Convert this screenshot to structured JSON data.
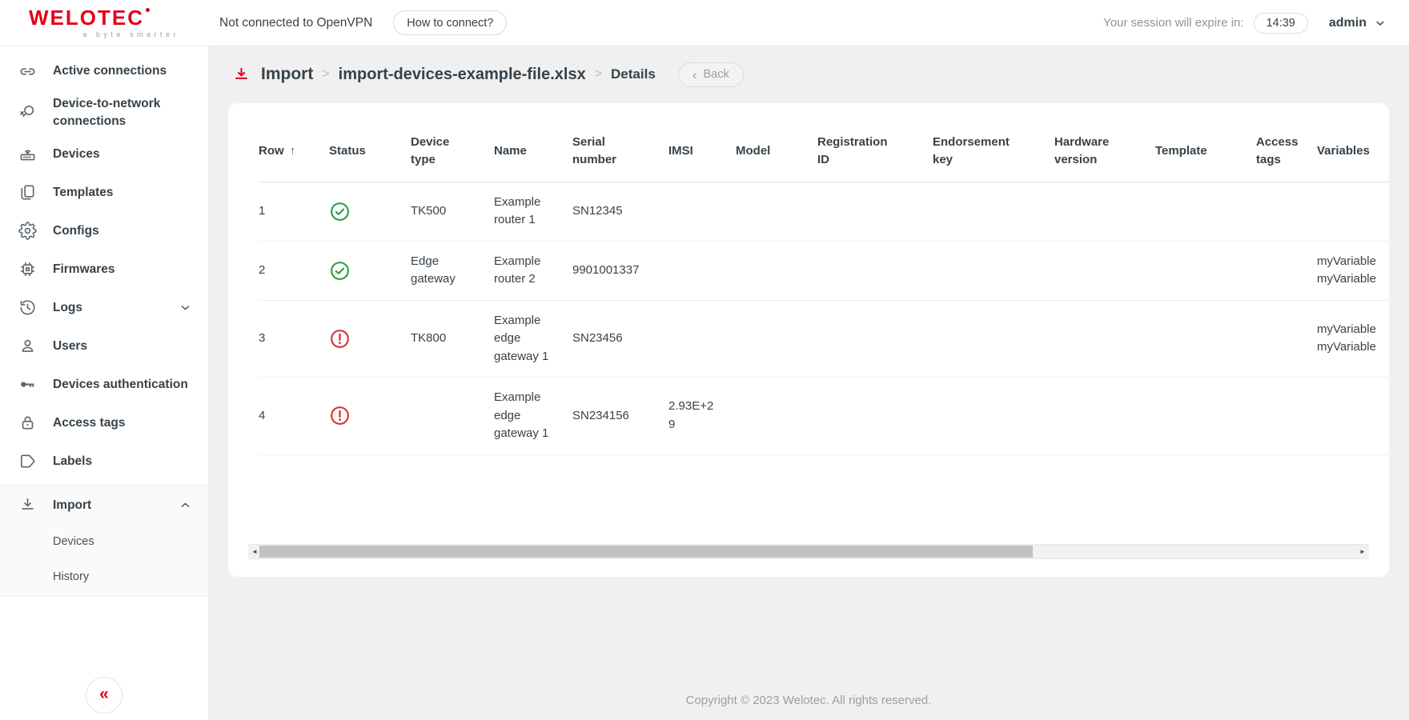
{
  "colors": {
    "brand_red": "#e2001a",
    "status_success_green": "#2f9e44",
    "status_error_red": "#d53434",
    "page_background": "#f0f0f0",
    "text_dark": "#37424a",
    "text_gray": "#8d9499"
  },
  "topbar": {
    "logo_brand": "welotec",
    "logo_tagline": "a byte smarter",
    "vpn_status": "Not connected to OpenVPN",
    "how_to_connect_label": "How to connect?",
    "session_label": "Your session will expire in:",
    "session_time": "14:39",
    "username": "admin"
  },
  "sidebar": {
    "items": [
      {
        "label": "Active connections",
        "icon": "link-icon"
      },
      {
        "label": "Device-to-network connections",
        "icon": "search-remove-icon"
      },
      {
        "label": "Devices",
        "icon": "router-icon"
      },
      {
        "label": "Templates",
        "icon": "templates-icon"
      },
      {
        "label": "Configs",
        "icon": "gear-icon"
      },
      {
        "label": "Firmwares",
        "icon": "chip-icon"
      },
      {
        "label": "Logs",
        "icon": "history-icon",
        "chevron": "down"
      },
      {
        "label": "Users",
        "icon": "user-icon"
      },
      {
        "label": "Devices authentication",
        "icon": "key-icon"
      },
      {
        "label": "Access tags",
        "icon": "lock-icon"
      },
      {
        "label": "Labels",
        "icon": "tag-icon"
      },
      {
        "label": "Import",
        "icon": "import-icon",
        "chevron": "up",
        "active": true,
        "children": [
          {
            "label": "Devices"
          },
          {
            "label": "History"
          }
        ]
      }
    ]
  },
  "breadcrumb": {
    "root": "Import",
    "separator": ">",
    "file": "import-devices-example-file.xlsx",
    "page": "Details",
    "back_label": "Back"
  },
  "table": {
    "columns": [
      {
        "label": "Row",
        "sorted": "asc"
      },
      {
        "label": "Status"
      },
      {
        "label": "Device type"
      },
      {
        "label": "Name"
      },
      {
        "label": "Serial number"
      },
      {
        "label": "IMSI"
      },
      {
        "label": "Model"
      },
      {
        "label": "Registration ID"
      },
      {
        "label": "Endorsement key"
      },
      {
        "label": "Hardware version"
      },
      {
        "label": "Template"
      },
      {
        "label": "Access tags"
      },
      {
        "label": "Variables"
      }
    ],
    "rows": [
      {
        "row": "1",
        "status": "success",
        "device_type": "TK500",
        "name": "Example router 1",
        "serial_number": "SN12345",
        "imsi": "",
        "model": "",
        "registration_id": "",
        "endorsement_key": "",
        "hardware_version": "",
        "template": "",
        "access_tags": "",
        "variables": []
      },
      {
        "row": "2",
        "status": "success",
        "device_type": "Edge gateway",
        "name": "Example router 2",
        "serial_number": "9901001337",
        "imsi": "",
        "model": "",
        "registration_id": "",
        "endorsement_key": "",
        "hardware_version": "",
        "template": "",
        "access_tags": "",
        "variables": [
          "myVariable",
          "myVariable"
        ]
      },
      {
        "row": "3",
        "status": "error",
        "device_type": "TK800",
        "name": "Example edge gateway 1",
        "serial_number": "SN23456",
        "imsi": "",
        "model": "",
        "registration_id": "",
        "endorsement_key": "",
        "hardware_version": "",
        "template": "",
        "access_tags": "",
        "variables": [
          "myVariable",
          "myVariable"
        ]
      },
      {
        "row": "4",
        "status": "error",
        "device_type": "",
        "name": "Example edge gateway 1",
        "serial_number": "SN234156",
        "imsi": "2.93E+29",
        "model": "",
        "registration_id": "",
        "endorsement_key": "",
        "hardware_version": "",
        "template": "",
        "access_tags": "",
        "variables": []
      }
    ]
  },
  "icons": {
    "sort_asc": "↑",
    "back_chevron": "‹",
    "collapse": "«",
    "scroll_left": "◄",
    "scroll_right": "►"
  },
  "footer": {
    "copyright": "Copyright © 2023 Welotec. All rights reserved."
  }
}
